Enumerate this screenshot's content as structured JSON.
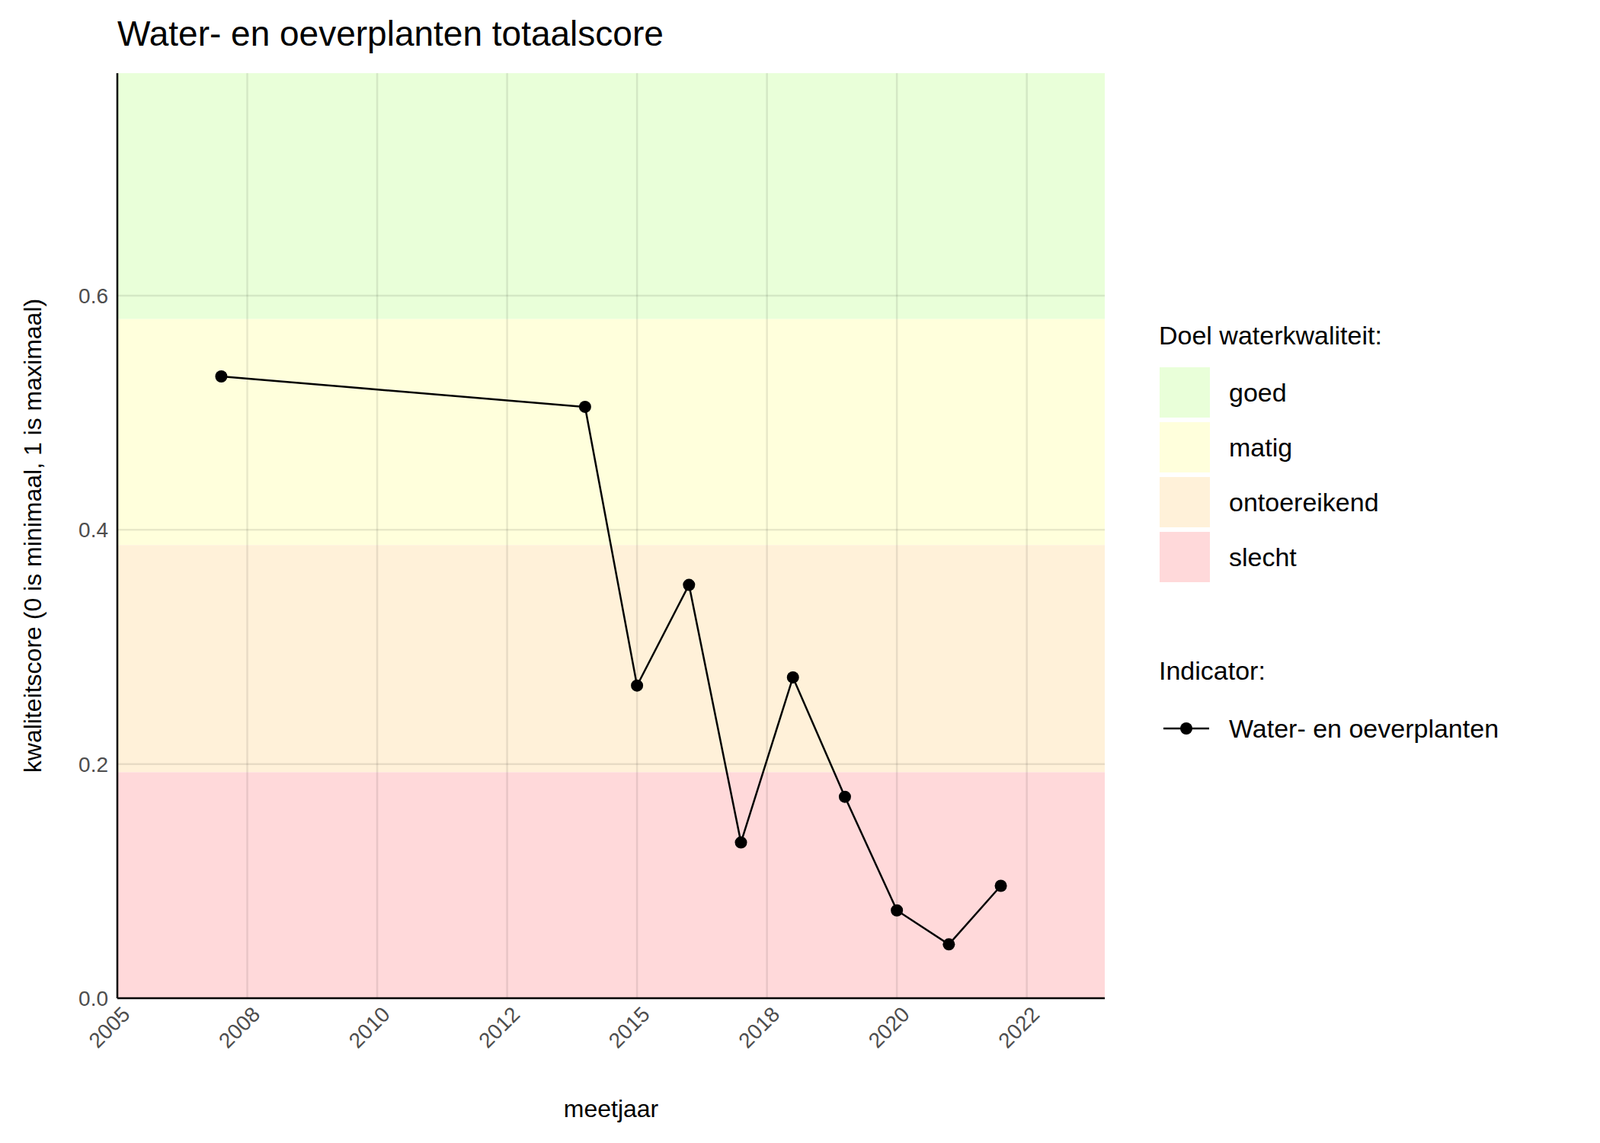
{
  "chart_data": {
    "type": "line",
    "title": "Water- en oeverplanten totaalscore",
    "x_label": "meetjaar",
    "y_label": "kwaliteitscore (0 is minimaal, 1 is maximaal)",
    "bands_title": "Doel waterkwaliteit:",
    "bands": [
      {
        "name": "goed",
        "color": "#e9ffd9",
        "from": 0.58,
        "to": 0.79
      },
      {
        "name": "matig",
        "color": "#ffffdc",
        "from": 0.387,
        "to": 0.58
      },
      {
        "name": "ontoereikend",
        "color": "#fff1d9",
        "from": 0.193,
        "to": 0.387
      },
      {
        "name": "slecht",
        "color": "#ffd9da",
        "from": 0,
        "to": 0.193
      }
    ],
    "legend_title": "Indicator:",
    "x": [
      2007,
      2014,
      2015,
      2016,
      2017,
      2018,
      2019,
      2020,
      2021,
      2022
    ],
    "series": [
      {
        "name": "Water- en oeverplanten",
        "color": "#000000",
        "marker": "circle",
        "line_style": "solid",
        "values": [
          0.531,
          0.505,
          0.267,
          0.353,
          0.133,
          0.274,
          0.172,
          0.075,
          0.046,
          0.096
        ]
      }
    ],
    "xlim": [
      2005,
      2024
    ],
    "xticks": [
      {
        "value": 2005,
        "label": "2005"
      },
      {
        "value": 2007.5,
        "label": "2008"
      },
      {
        "value": 2010,
        "label": "2010"
      },
      {
        "value": 2012.5,
        "label": "2012"
      },
      {
        "value": 2015,
        "label": "2015"
      },
      {
        "value": 2017.5,
        "label": "2018"
      },
      {
        "value": 2020,
        "label": "2020"
      },
      {
        "value": 2022.5,
        "label": "2022"
      }
    ],
    "ylim": [
      0,
      0.79
    ],
    "yticks": [
      {
        "value": 0,
        "label": "0.0"
      },
      {
        "value": 0.2,
        "label": "0.2"
      },
      {
        "value": 0.4,
        "label": "0.4"
      },
      {
        "value": 0.6,
        "label": "0.6"
      }
    ],
    "grid": true,
    "legend": "right"
  }
}
